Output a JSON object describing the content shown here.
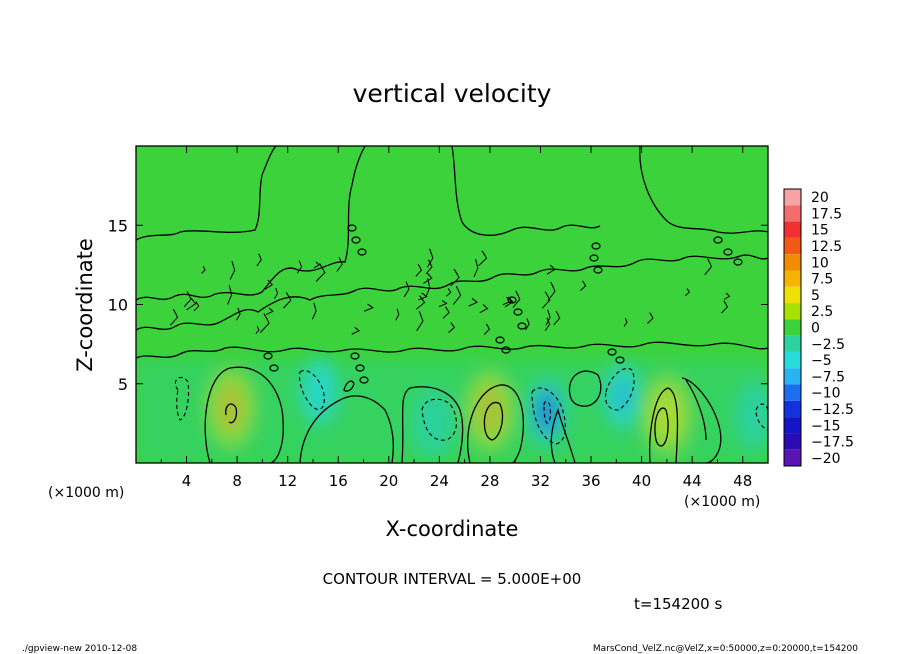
{
  "chart_data": {
    "type": "heatmap",
    "title": "vertical velocity",
    "xlabel": "X-coordinate",
    "ylabel": "Z-coordinate",
    "x_unit_left": "(×1000 m)",
    "x_unit_right": "(×1000 m)",
    "x_ticks": [
      "4",
      "8",
      "12",
      "16",
      "20",
      "24",
      "28",
      "32",
      "36",
      "40",
      "44",
      "48"
    ],
    "y_ticks": [
      "5",
      "10",
      "15"
    ],
    "xlim": [
      0,
      50
    ],
    "ylim": [
      0,
      20
    ],
    "colorbar": {
      "levels": [
        "20",
        "17.5",
        "15",
        "12.5",
        "10",
        "7.5",
        "5",
        "2.5",
        "0",
        "−2.5",
        "−5",
        "−7.5",
        "−10",
        "−12.5",
        "−15",
        "−17.5",
        "−20"
      ],
      "colors": [
        "#f5a3a3",
        "#f46d6d",
        "#f03030",
        "#f05a14",
        "#f08c00",
        "#f5b400",
        "#f0e000",
        "#a8e000",
        "#3cd23c",
        "#2cd2a0",
        "#28dcdc",
        "#28b4f0",
        "#1e6ef0",
        "#1432dc",
        "#1414c8",
        "#2a0ab4",
        "#5a14b4"
      ]
    },
    "features": [
      {
        "x": 7.5,
        "z": 3.5,
        "value": 8,
        "sign": "positive"
      },
      {
        "x": 14.5,
        "z": 4.5,
        "value": -6,
        "sign": "negative"
      },
      {
        "x": 23.5,
        "z": 2.5,
        "value": -3,
        "sign": "negative"
      },
      {
        "x": 28,
        "z": 3.3,
        "value": 7,
        "sign": "positive"
      },
      {
        "x": 32.5,
        "z": 3.2,
        "value": -10,
        "sign": "negative"
      },
      {
        "x": 38.5,
        "z": 4.2,
        "value": -8,
        "sign": "negative"
      },
      {
        "x": 42,
        "z": 3,
        "value": 6,
        "sign": "positive"
      },
      {
        "x": 49,
        "z": 3,
        "value": -3,
        "sign": "negative"
      }
    ]
  },
  "annotations": {
    "contour_interval": "CONTOUR INTERVAL = 5.000E+00",
    "time": "t=154200 s",
    "footer_left": "./gpview-new   2010-12-08",
    "footer_right": "MarsCond_VelZ.nc@VelZ,x=0:50000,z=0:20000,t=154200"
  },
  "colors": {
    "background_field": "#3cd23c"
  }
}
